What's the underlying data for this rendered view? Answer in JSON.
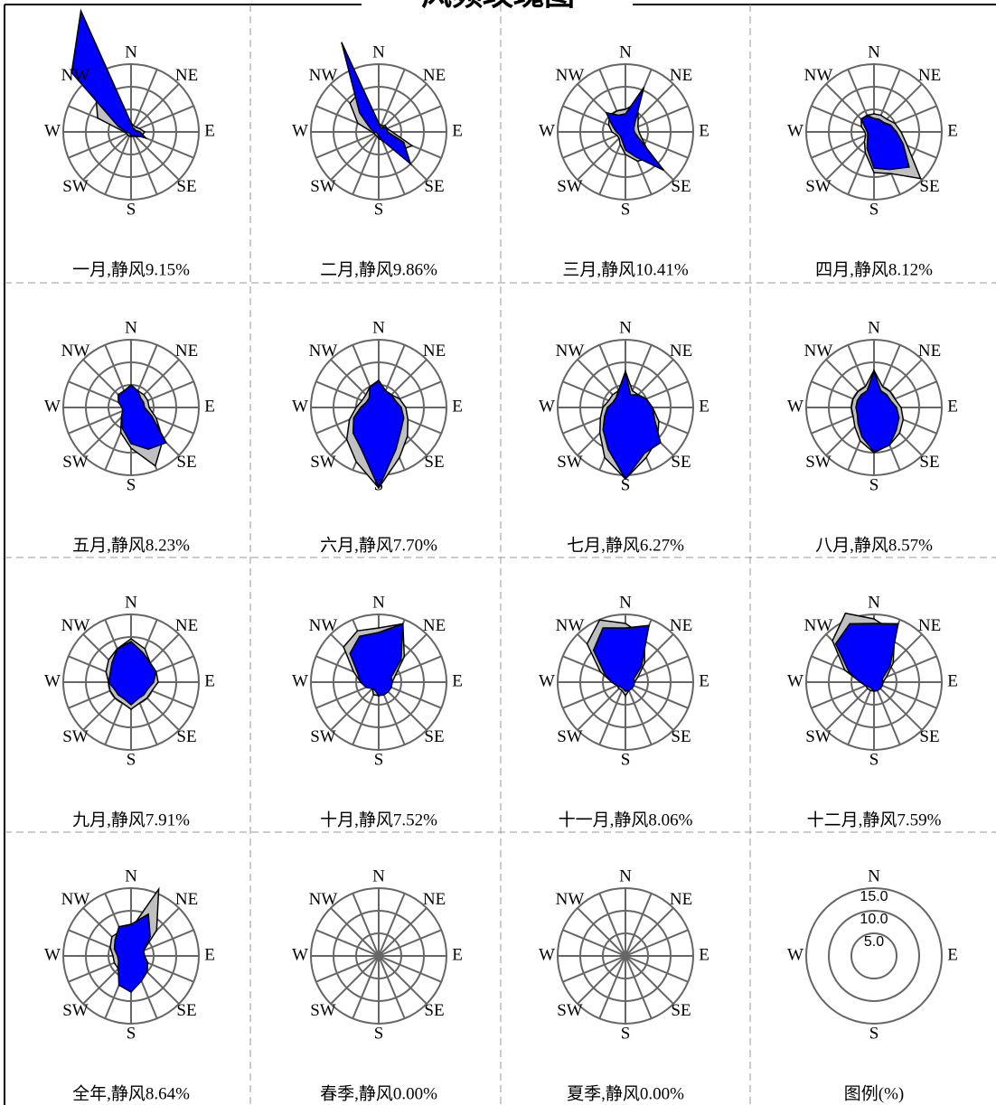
{
  "chart_data": {
    "type": "windrose",
    "title": "风频玫瑰图",
    "rlim": [
      0,
      15
    ],
    "rticks": [
      {
        "value": 5,
        "label": "5.0"
      },
      {
        "value": 10,
        "label": "10.0"
      },
      {
        "value": 15,
        "label": "15.0"
      }
    ],
    "colors": [
      "#c0c0c0",
      "#0000ff"
    ],
    "direction_labels": [
      "N",
      "NE",
      "E",
      "SE",
      "S",
      "SW",
      "W",
      "NW"
    ],
    "panels": [
      {
        "label": "一月,静风9.15%",
        "values": [
          [
            2,
            1.5,
            1.5,
            2,
            3,
            2.5,
            1.5,
            1,
            1,
            1,
            1,
            1,
            1.5,
            8,
            11,
            9
          ],
          [
            2,
            1,
            1,
            1,
            2,
            3.5,
            1,
            1,
            1,
            0.5,
            0.5,
            0.5,
            1,
            3,
            18.6,
            29
          ]
        ]
      },
      {
        "label": "二月,静风9.86%",
        "values": [
          [
            2,
            1.5,
            2,
            2,
            3,
            8,
            6,
            2,
            1.5,
            1,
            1,
            1,
            1.5,
            5,
            9,
            10
          ],
          [
            2,
            1,
            1.5,
            2,
            2,
            6,
            10,
            2,
            1,
            0.5,
            0.5,
            0.5,
            1,
            2,
            6,
            21.5
          ]
        ]
      },
      {
        "label": "三月,静风10.41%",
        "values": [
          [
            5,
            7,
            4,
            3,
            3,
            4,
            8,
            7,
            5,
            3,
            2,
            2,
            3,
            4,
            5,
            5
          ],
          [
            4,
            10.7,
            3,
            2,
            2,
            3,
            12,
            6,
            4,
            2,
            1.5,
            1.5,
            2,
            3,
            6,
            4
          ]
        ]
      },
      {
        "label": "四月,静风8.12%",
        "values": [
          [
            4,
            4,
            4,
            5,
            6,
            8,
            14.6,
            10,
            9,
            5,
            3,
            2,
            2,
            3,
            4,
            4
          ],
          [
            3,
            3,
            3,
            4,
            5,
            7,
            11,
            9,
            8,
            4,
            2,
            1.5,
            1.5,
            2,
            4,
            4
          ]
        ]
      },
      {
        "label": "五月,静风8.23%",
        "values": [
          [
            4,
            4,
            4,
            4,
            4,
            6,
            10,
            14,
            9,
            6,
            3,
            2,
            2,
            3,
            4,
            4
          ],
          [
            5,
            4,
            3,
            3,
            3,
            5,
            11,
            10,
            8,
            5,
            3,
            2,
            2,
            3,
            4,
            4
          ]
        ]
      },
      {
        "label": "六月,静风7.70%",
        "values": [
          [
            6,
            4,
            4,
            5,
            6,
            7,
            9,
            12,
            17.8,
            13,
            10,
            7,
            5,
            4,
            4,
            5
          ],
          [
            6,
            4,
            4,
            4,
            5,
            6,
            7,
            10,
            17.8,
            10,
            8,
            6,
            4,
            3,
            3,
            5
          ]
        ]
      },
      {
        "label": "七月,静风6.27%",
        "values": [
          [
            8,
            4,
            4,
            5,
            6,
            8,
            10,
            12,
            15.8,
            12,
            8,
            6,
            5,
            4,
            4,
            4
          ],
          [
            7.8,
            3,
            4,
            5,
            6,
            7,
            11,
            11,
            15.8,
            10,
            7,
            5,
            4,
            3,
            3,
            4
          ]
        ]
      },
      {
        "label": "八月,静风8.57%",
        "values": [
          [
            8.2,
            5,
            5,
            5,
            6,
            7,
            8,
            9,
            10,
            8,
            6,
            5,
            5,
            5,
            5,
            5
          ],
          [
            8,
            4,
            4,
            4,
            5,
            6,
            7,
            9,
            9.8,
            7,
            5,
            4,
            4,
            4,
            4,
            4
          ]
        ]
      },
      {
        "label": "九月,静风7.91%",
        "values": [
          [
            9.6,
            8,
            6,
            6,
            6,
            5,
            5,
            5,
            6,
            5,
            5,
            5,
            5,
            6,
            7,
            8
          ],
          [
            9,
            7,
            6,
            6,
            5,
            4,
            4,
            4,
            5,
            4,
            4,
            4,
            5,
            5,
            6,
            8
          ]
        ]
      },
      {
        "label": "十月,静风7.52%",
        "values": [
          [
            12,
            14,
            8,
            4,
            3,
            3,
            3,
            3,
            3,
            3,
            2,
            3,
            4,
            6,
            11,
            12.3
          ],
          [
            11,
            14,
            7,
            3,
            3,
            3,
            3,
            3,
            3,
            2,
            2,
            3,
            4,
            5,
            9,
            11
          ]
        ]
      },
      {
        "label": "十一月,静风8.06%",
        "values": [
          [
            13,
            11,
            6,
            3,
            2,
            2,
            2,
            2,
            3,
            2,
            2,
            2,
            3,
            6,
            12,
            14.9
          ],
          [
            12,
            13.6,
            5,
            2,
            2,
            2,
            2,
            2,
            2,
            1.5,
            1.5,
            2,
            3,
            5,
            10,
            13
          ]
        ]
      },
      {
        "label": "十二月,静风7.59%",
        "values": [
          [
            14,
            12,
            6,
            3,
            2,
            2,
            2,
            2,
            2,
            2,
            2,
            2,
            3,
            7,
            13,
            16.5
          ],
          [
            13,
            14,
            5,
            2,
            2,
            2,
            2,
            2,
            2,
            1.5,
            1.5,
            2,
            3,
            6,
            12,
            14
          ]
        ]
      },
      {
        "label": "全年,静风8.64%",
        "values": [
          [
            6,
            16,
            8,
            3,
            3,
            4,
            5,
            6,
            6,
            5,
            4,
            4,
            4,
            5,
            6,
            6
          ],
          [
            7,
            10,
            6,
            3,
            3,
            4,
            5,
            6,
            8,
            7,
            4,
            3,
            3,
            4,
            5,
            7
          ]
        ]
      },
      {
        "label": "春季,静风0.00%"
      },
      {
        "label": "夏季,静风0.00%"
      }
    ],
    "legend": {
      "label": "图例(%)",
      "direction_labels": [
        "N",
        "E",
        "S",
        "W"
      ]
    }
  }
}
